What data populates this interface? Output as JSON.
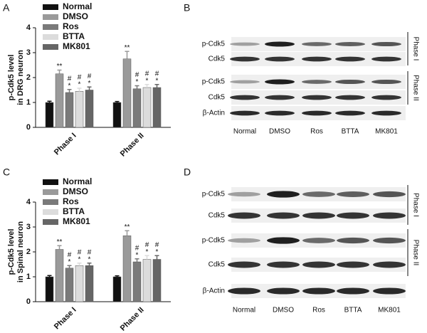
{
  "chart_data": [
    {
      "type": "bar",
      "panel": "A",
      "ylabel": [
        "p-Cdk5 level",
        "in DRG neuron"
      ],
      "categories": [
        "Phase I",
        "Phase II"
      ],
      "ylim": [
        0,
        4
      ],
      "yticks": [
        0,
        1,
        2,
        3,
        4
      ],
      "series": [
        {
          "name": "Normal",
          "color": "#111111",
          "values": [
            1.0,
            1.0
          ],
          "errors": [
            0.05,
            0.04
          ]
        },
        {
          "name": "DMSO",
          "color": "#9a9a9a",
          "values": [
            2.15,
            2.75
          ],
          "errors": [
            0.15,
            0.3
          ],
          "significance": [
            [
              "**"
            ],
            [
              "**"
            ]
          ]
        },
        {
          "name": "Ros",
          "color": "#7a7a7a",
          "values": [
            1.4,
            1.55
          ],
          "errors": [
            0.12,
            0.12
          ],
          "significance": [
            [
              "*",
              "#"
            ],
            [
              "*",
              "#"
            ]
          ]
        },
        {
          "name": "BTTA",
          "color": "#dcdcdc",
          "values": [
            1.45,
            1.6
          ],
          "errors": [
            0.12,
            0.12
          ],
          "significance": [
            [
              "*",
              "#"
            ],
            [
              "*",
              "#"
            ]
          ]
        },
        {
          "name": "MK801",
          "color": "#666666",
          "values": [
            1.5,
            1.6
          ],
          "errors": [
            0.12,
            0.12
          ],
          "significance": [
            [
              "*",
              "#"
            ],
            [
              "*",
              "#"
            ]
          ]
        }
      ]
    },
    {
      "type": "bar",
      "panel": "C",
      "ylabel": [
        "p-Cdk5 level",
        "in Spinal neuron"
      ],
      "categories": [
        "Phase I",
        "Phase II"
      ],
      "ylim": [
        0,
        4
      ],
      "yticks": [
        0,
        1,
        2,
        3,
        4
      ],
      "series": [
        {
          "name": "Normal",
          "color": "#111111",
          "values": [
            1.0,
            1.0
          ],
          "errors": [
            0.05,
            0.04
          ]
        },
        {
          "name": "DMSO",
          "color": "#9a9a9a",
          "values": [
            2.1,
            2.65
          ],
          "errors": [
            0.15,
            0.2
          ],
          "significance": [
            [
              "**"
            ],
            [
              "**"
            ]
          ]
        },
        {
          "name": "Ros",
          "color": "#7a7a7a",
          "values": [
            1.35,
            1.6
          ],
          "errors": [
            0.1,
            0.12
          ],
          "significance": [
            [
              "*",
              "#"
            ],
            [
              "*",
              "#"
            ]
          ]
        },
        {
          "name": "BTTA",
          "color": "#dcdcdc",
          "values": [
            1.45,
            1.7
          ],
          "errors": [
            0.1,
            0.15
          ],
          "significance": [
            [
              "*",
              "#"
            ],
            [
              "*",
              "#"
            ]
          ]
        },
        {
          "name": "MK801",
          "color": "#666666",
          "values": [
            1.45,
            1.7
          ],
          "errors": [
            0.1,
            0.15
          ],
          "significance": [
            [
              "*",
              "#"
            ],
            [
              "*",
              "#"
            ]
          ]
        }
      ]
    }
  ],
  "blots": [
    {
      "panel": "B",
      "rows": [
        "p-Cdk5",
        "Cdk5",
        "p-Cdk5",
        "Cdk5",
        "β-Actin"
      ],
      "lanes": [
        "Normal",
        "DMSO",
        "Ros",
        "BTTA",
        "MK801"
      ],
      "phases": [
        "Phase I",
        "Phase II"
      ]
    },
    {
      "panel": "D",
      "rows": [
        "p-Cdk5",
        "Cdk5",
        "p-Cdk5",
        "Cdk5",
        "β-Actin"
      ],
      "lanes": [
        "Normal",
        "DMSO",
        "Ros",
        "BTTA",
        "MK801"
      ],
      "phases": [
        "Phase I",
        "Phase II"
      ]
    }
  ]
}
